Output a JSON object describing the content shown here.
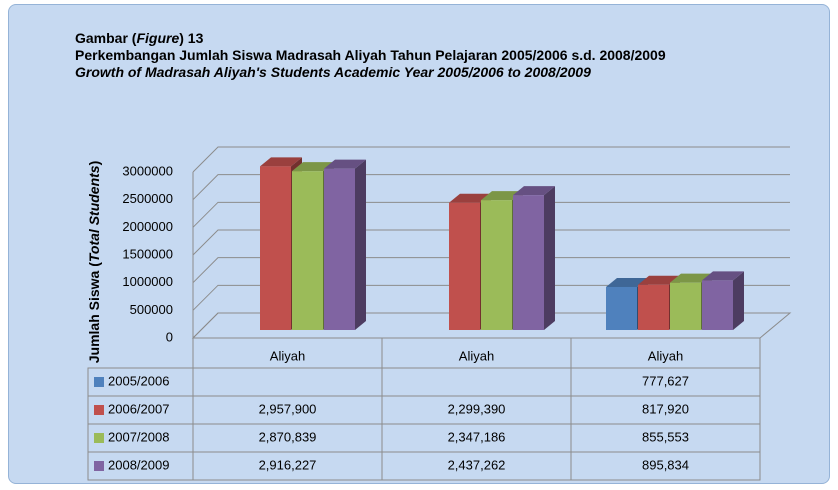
{
  "chart_data": {
    "type": "bar3d",
    "figure_label": [
      "Gambar (",
      "Figure",
      ") 13"
    ],
    "title": "Perkembangan Jumlah Siswa Madrasah Aliyah Tahun Pelajaran 2005/2006  s.d. 2008/2009",
    "subtitle": "Growth of Madrasah Aliyah's Students Academic Year 2005/2006 to 2008/2009",
    "ylabel": [
      "Jumlah Siswa (",
      "Total Students",
      ")"
    ],
    "categories": [
      "Aliyah",
      "Aliyah",
      "Aliyah"
    ],
    "series": [
      {
        "name": "2005/2006",
        "color": "#4f81bd",
        "values": [
          null,
          null,
          777627
        ],
        "value_labels": [
          null,
          null,
          "777,627"
        ]
      },
      {
        "name": "2006/2007",
        "color": "#c0504d",
        "values": [
          2957900,
          2299390,
          817920
        ],
        "value_labels": [
          "2,957,900",
          "2,299,390",
          "817,920"
        ]
      },
      {
        "name": "2007/2008",
        "color": "#9bbb59",
        "values": [
          2870839,
          2347186,
          855553
        ],
        "value_labels": [
          "2,870,839",
          "2,347,186",
          "855,553"
        ]
      },
      {
        "name": "2008/2009",
        "color": "#8064a2",
        "values": [
          2916227,
          2437262,
          895834
        ],
        "value_labels": [
          "2,916,227",
          "2,437,262",
          "895,834"
        ]
      }
    ],
    "ylim": [
      0,
      3000000
    ],
    "yticks": [
      0,
      500000,
      1000000,
      1500000,
      2000000,
      2500000,
      3000000
    ],
    "grid": true
  }
}
